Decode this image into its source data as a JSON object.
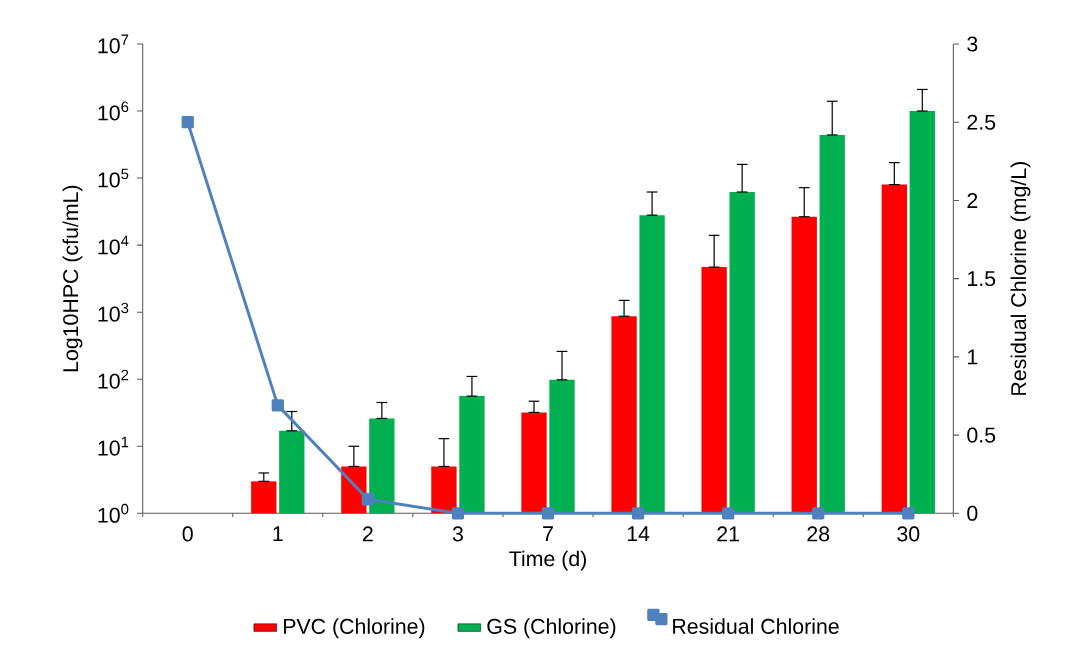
{
  "chart_data": {
    "type": "bar",
    "xlabel": "Time (d)",
    "ylabel": "Log10HPC (cfu/mL)",
    "y2label": "Residual Chlorine (mg/L)",
    "categories": [
      "0",
      "1",
      "2",
      "3",
      "7",
      "14",
      "21",
      "28",
      "30"
    ],
    "log": "y",
    "ylim": [
      1,
      10000000
    ],
    "yticks": [
      {
        "value": 1,
        "label": "10$^{0}$"
      },
      {
        "value": 10,
        "label": "10$^{1}$"
      },
      {
        "value": 100,
        "label": "10$^{2}$"
      },
      {
        "value": 1000,
        "label": "10$^{3}$"
      },
      {
        "value": 10000,
        "label": "10$^{4}$"
      },
      {
        "value": 100000,
        "label": "10$^{5}$"
      },
      {
        "value": 1000000,
        "label": "10$^{6}$"
      },
      {
        "value": 10000000,
        "label": "10$^{7}$"
      }
    ],
    "y2lim": [
      0,
      3
    ],
    "y2ticks": [
      0,
      0.5,
      1,
      1.5,
      2,
      2.5,
      3
    ],
    "legend": "bottom",
    "series": [
      {
        "name": "PVC (Chlorine)",
        "color": "#ff0000",
        "values": [
          null,
          3,
          5,
          5,
          32,
          870,
          4700,
          26500,
          80000
        ],
        "errors": [
          null,
          [
            3,
            4
          ],
          [
            5,
            10
          ],
          [
            5,
            13
          ],
          [
            32,
            47
          ],
          [
            870,
            1500
          ],
          [
            4700,
            14000
          ],
          [
            26500,
            72000
          ],
          [
            80000,
            170000
          ]
        ]
      },
      {
        "name": "GS (Chlorine)",
        "color": "#00b050",
        "values": [
          null,
          17,
          26,
          56,
          98,
          28000,
          62000,
          440000,
          1000000
        ],
        "errors": [
          null,
          [
            17,
            33
          ],
          [
            26,
            45
          ],
          [
            56,
            110
          ],
          [
            98,
            260
          ],
          [
            28000,
            62000
          ],
          [
            62000,
            160000
          ],
          [
            440000,
            1400000
          ],
          [
            1000000,
            2100000
          ]
        ]
      },
      {
        "name": "Residual Chlorine",
        "type": "line",
        "axis": "y2",
        "color": "#4f81bd",
        "marker": "square",
        "values": [
          2.5,
          0.69,
          0.09,
          0,
          0,
          0,
          0,
          0,
          0
        ]
      }
    ]
  }
}
